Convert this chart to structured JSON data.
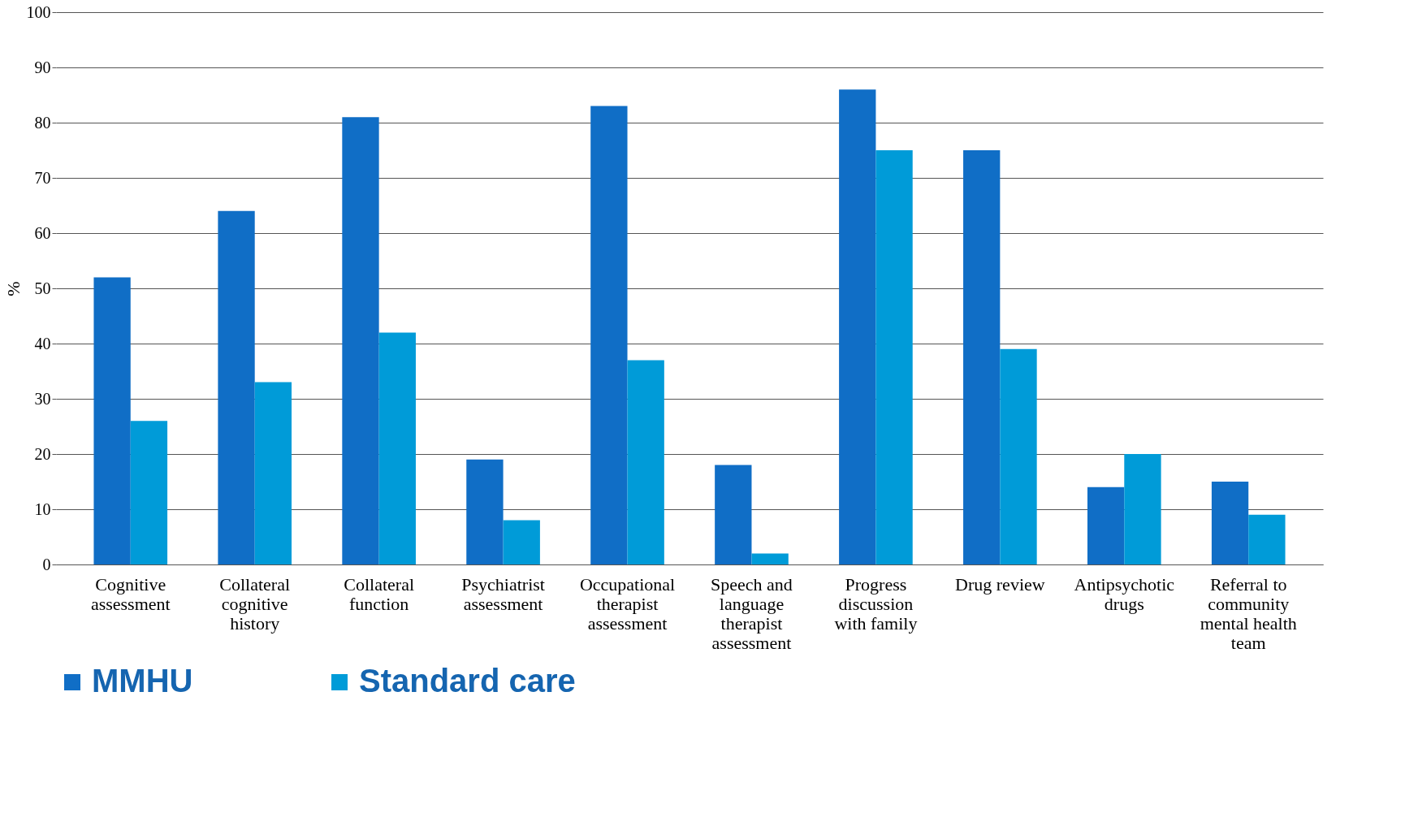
{
  "chart_data": {
    "type": "bar",
    "ylabel": "%",
    "categories": [
      "Cognitive assessment",
      "Collateral cognitive history",
      "Collateral function",
      "Psychiatrist assessment",
      "Occupational therapist assessment",
      "Speech and language therapist assessment",
      "Progress discussion with family",
      "Drug review",
      "Antipsychotic drugs",
      "Referral to community mental health team"
    ],
    "series": [
      {
        "name": "MMHU",
        "color": "#106ec6",
        "values": [
          52,
          64,
          81,
          19,
          83,
          18,
          86,
          75,
          14,
          15
        ]
      },
      {
        "name": "Standard care",
        "color": "#009bd8",
        "values": [
          26,
          33,
          42,
          8,
          37,
          2,
          75,
          39,
          20,
          9
        ]
      }
    ],
    "ylim": [
      0,
      100
    ],
    "yticks": [
      0,
      10,
      20,
      30,
      40,
      50,
      60,
      70,
      80,
      90,
      100
    ],
    "grid": "y",
    "legend": "bottom"
  }
}
